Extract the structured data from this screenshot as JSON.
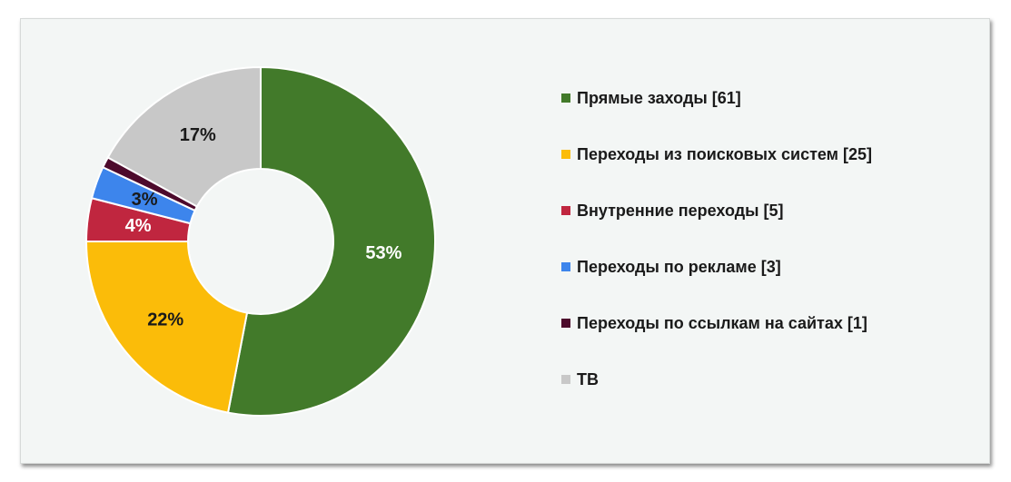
{
  "chart_data": {
    "type": "pie",
    "variant": "donut",
    "title": "",
    "categories": [
      "Прямые заходы [61]",
      "Переходы из поисковых систем [25]",
      "Внутренние переходы [5]",
      "Переходы по рекламе [3]",
      "Переходы по ссылкам на сайтах [1]",
      "ТВ"
    ],
    "values": [
      53,
      22,
      4,
      3,
      1,
      17
    ],
    "value_labels": [
      "53%",
      "22%",
      "4%",
      "3%",
      "",
      "17%"
    ],
    "colors": [
      "#427a2a",
      "#fbbc09",
      "#c0263f",
      "#3d85ec",
      "#4d0a2c",
      "#c8c8c8"
    ],
    "label_colors": [
      "#ffffff",
      "#1a1a1a",
      "#ffffff",
      "#1a1a1a",
      "#ffffff",
      "#1a1a1a"
    ],
    "legend_position": "right"
  }
}
